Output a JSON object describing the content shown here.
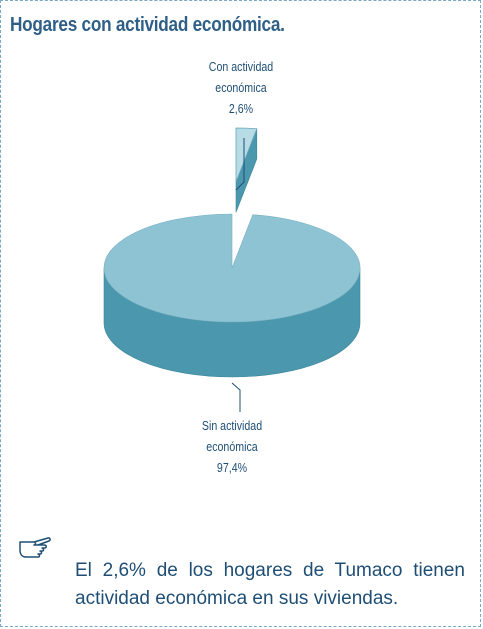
{
  "colors": {
    "title": "#2f5f86",
    "text": "#1f4e75",
    "pie_top": "#8ec3d3",
    "pie_side": "#4b97ad",
    "border": "#7aa7c7"
  },
  "icon": "pointing-hand-icon",
  "chart_data": {
    "type": "pie",
    "title": "Hogares con actividad económica.",
    "three_d": true,
    "slices": [
      {
        "label_lines": [
          "Con actividad",
          "económica"
        ],
        "value": 2.6,
        "value_label": "2,6%",
        "exploded": true
      },
      {
        "label_lines": [
          "Sin actividad",
          "económica"
        ],
        "value": 97.4,
        "value_label": "97,4%",
        "exploded": false
      }
    ]
  },
  "note": {
    "text": "El 2,6% de los hogares de Tumaco tienen actividad económica en sus viviendas."
  }
}
